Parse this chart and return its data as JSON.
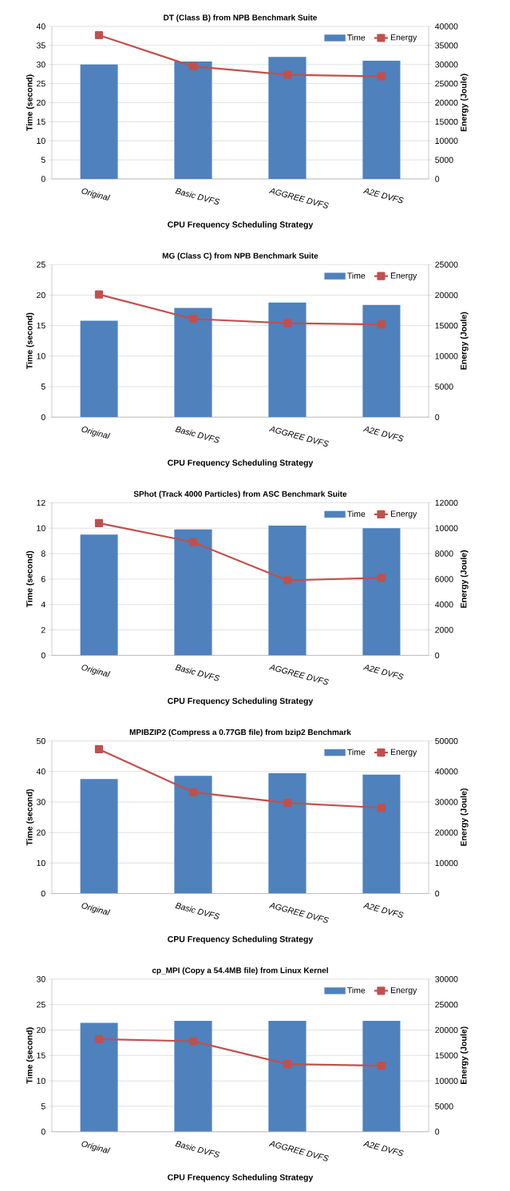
{
  "chart_data": [
    {
      "type": "bar",
      "title": "DT (Class B) from NPB Benchmark Suite",
      "xlabel": "CPU Frequency Scheduling Strategy",
      "ylabel": "Time (second)",
      "y2label": "Energy (Joule)",
      "categories": [
        "Original",
        "Basic DVFS",
        "AGGREE DVFS",
        "A2E DVFS"
      ],
      "series": [
        {
          "name": "Time",
          "color": "#4f81bd",
          "values": [
            30,
            30.8,
            32,
            31
          ]
        },
        {
          "name": "Energy",
          "type": "line",
          "axis": "y2",
          "color": "#c0504d",
          "values": [
            37700,
            29500,
            27300,
            26900
          ]
        }
      ],
      "ylim": [
        0,
        40
      ],
      "yticks": [
        0,
        5,
        10,
        15,
        20,
        25,
        30,
        35,
        40
      ],
      "y2lim": [
        0,
        40000
      ],
      "y2ticks": [
        0,
        5000,
        10000,
        15000,
        20000,
        25000,
        30000,
        35000,
        40000
      ],
      "grid": "y",
      "legend": "top right",
      "marker": "square",
      "line_style": "solid"
    },
    {
      "type": "bar",
      "title": "MG (Class C) from NPB Benchmark Suite",
      "xlabel": "CPU Frequency Scheduling Strategy",
      "ylabel": "Time (second)",
      "y2label": "Energy (Joule)",
      "categories": [
        "Original",
        "Basic DVFS",
        "AGGREE DVFS",
        "A2E DVFS"
      ],
      "series": [
        {
          "name": "Time",
          "color": "#4f81bd",
          "values": [
            15.8,
            17.9,
            18.8,
            18.4
          ]
        },
        {
          "name": "Energy",
          "type": "line",
          "axis": "y2",
          "color": "#c0504d",
          "values": [
            20100,
            16100,
            15400,
            15200
          ]
        }
      ],
      "ylim": [
        0,
        25
      ],
      "yticks": [
        0,
        5,
        10,
        15,
        20,
        25
      ],
      "y2lim": [
        0,
        25000
      ],
      "y2ticks": [
        0,
        5000,
        10000,
        15000,
        20000,
        25000
      ],
      "grid": "y",
      "legend": "top right",
      "marker": "square",
      "line_style": "solid"
    },
    {
      "type": "bar",
      "title": "SPhot (Track 4000 Particles) from ASC Benchmark Suite",
      "xlabel": "CPU Frequency Scheduling Strategy",
      "ylabel": "Time (second)",
      "y2label": "Energy (Joule)",
      "categories": [
        "Original",
        "Basic DVFS",
        "AGGREE DVFS",
        "A2E DVFS"
      ],
      "series": [
        {
          "name": "Time",
          "color": "#4f81bd",
          "values": [
            9.5,
            9.9,
            10.2,
            10.0
          ]
        },
        {
          "name": "Energy",
          "type": "line",
          "axis": "y2",
          "color": "#c0504d",
          "values": [
            10400,
            8900,
            5900,
            6100
          ]
        }
      ],
      "ylim": [
        0,
        12
      ],
      "yticks": [
        0,
        2,
        4,
        6,
        8,
        10,
        12
      ],
      "y2lim": [
        0,
        12000
      ],
      "y2ticks": [
        0,
        2000,
        4000,
        6000,
        8000,
        10000,
        12000
      ],
      "grid": "y",
      "legend": "top right",
      "marker": "square",
      "line_style": "solid"
    },
    {
      "type": "bar",
      "title": "MPIBZIP2 (Compress a 0.77GB file) from bzip2 Benchmark",
      "xlabel": "CPU Frequency Scheduling Strategy",
      "ylabel": "Time (second)",
      "y2label": "Energy (Joule)",
      "categories": [
        "Original",
        "Basic DVFS",
        "AGGREE DVFS",
        "A2E DVFS"
      ],
      "series": [
        {
          "name": "Time",
          "color": "#4f81bd",
          "values": [
            37.5,
            38.6,
            39.4,
            39
          ]
        },
        {
          "name": "Energy",
          "type": "line",
          "axis": "y2",
          "color": "#c0504d",
          "values": [
            47300,
            33200,
            29700,
            28100
          ]
        }
      ],
      "ylim": [
        0,
        50
      ],
      "yticks": [
        0,
        10,
        20,
        30,
        40,
        50
      ],
      "y2lim": [
        0,
        50000
      ],
      "y2ticks": [
        0,
        10000,
        20000,
        30000,
        40000,
        50000
      ],
      "grid": "y",
      "legend": "top right",
      "marker": "square",
      "line_style": "solid"
    },
    {
      "type": "bar",
      "title": "cp_MPI (Copy a 54.4MB file) from Linux Kernel",
      "xlabel": "CPU Frequency Scheduling Strategy",
      "ylabel": "Time (second)",
      "y2label": "Energy (Joule)",
      "categories": [
        "Original",
        "Basic DVFS",
        "AGGREE DVFS",
        "A2E DVFS"
      ],
      "series": [
        {
          "name": "Time",
          "color": "#4f81bd",
          "values": [
            21.4,
            21.8,
            21.8,
            21.8
          ]
        },
        {
          "name": "Energy",
          "type": "line",
          "axis": "y2",
          "color": "#c0504d",
          "values": [
            18200,
            17800,
            13300,
            13000
          ]
        }
      ],
      "ylim": [
        0,
        30
      ],
      "yticks": [
        0,
        5,
        10,
        15,
        20,
        25,
        30
      ],
      "y2lim": [
        0,
        30000
      ],
      "y2ticks": [
        0,
        5000,
        10000,
        15000,
        20000,
        25000,
        30000
      ],
      "grid": "y",
      "legend": "top right",
      "marker": "square",
      "line_style": "solid"
    }
  ]
}
